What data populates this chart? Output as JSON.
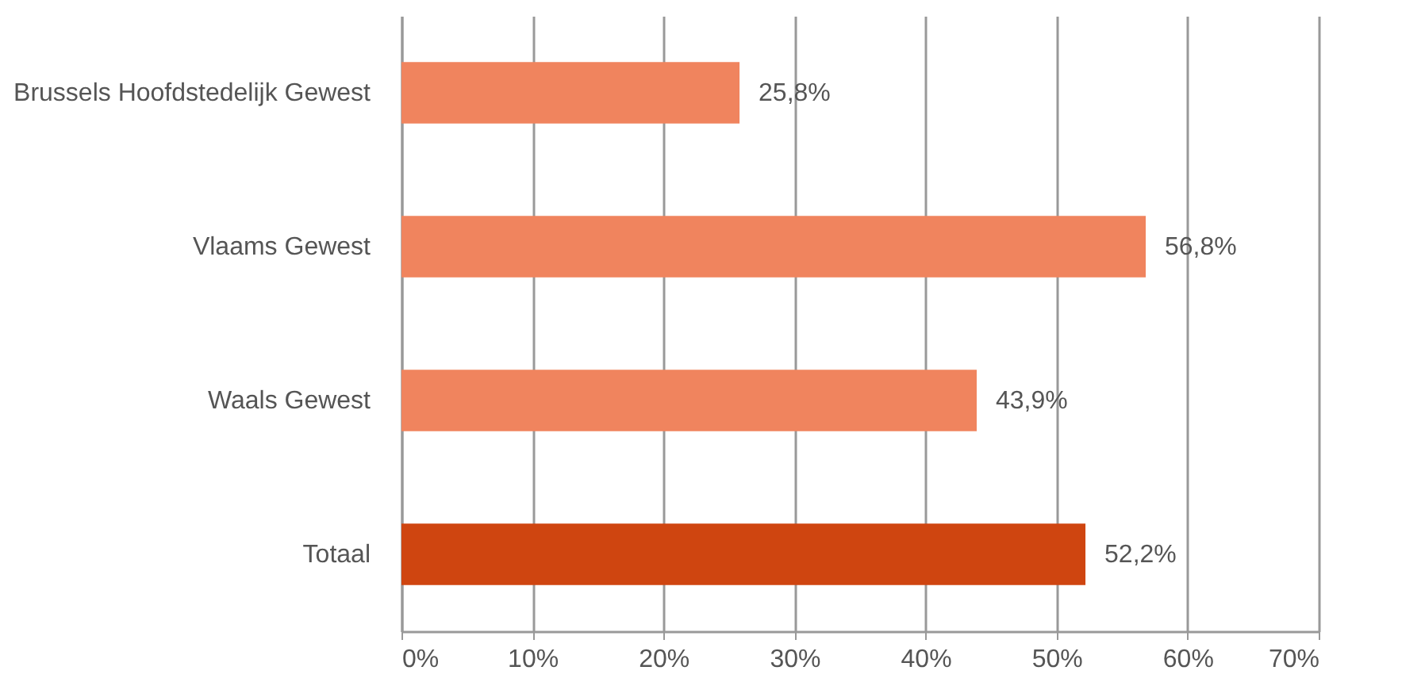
{
  "chart_data": {
    "type": "bar",
    "orientation": "horizontal",
    "categories": [
      "Brussels Hoofdstedelijk Gewest",
      "Vlaams Gewest",
      "Waals Gewest",
      "Totaal"
    ],
    "values": [
      25.8,
      56.8,
      43.9,
      52.2
    ],
    "colors": [
      "#f0845e",
      "#f0845e",
      "#f0845e",
      "#cf4510"
    ],
    "value_labels": [
      "25,8%",
      "56,8%",
      "43,9%",
      "52,2%"
    ],
    "xlim": [
      0,
      70
    ],
    "xticks": [
      {
        "value": 0,
        "label": "0%"
      },
      {
        "value": 10,
        "label": "10%"
      },
      {
        "value": 20,
        "label": "20%"
      },
      {
        "value": 30,
        "label": "30%"
      },
      {
        "value": 40,
        "label": "40%"
      },
      {
        "value": 50,
        "label": "50%"
      },
      {
        "value": 60,
        "label": "60%"
      },
      {
        "value": 70,
        "label": "70%"
      }
    ],
    "grid": "x"
  }
}
